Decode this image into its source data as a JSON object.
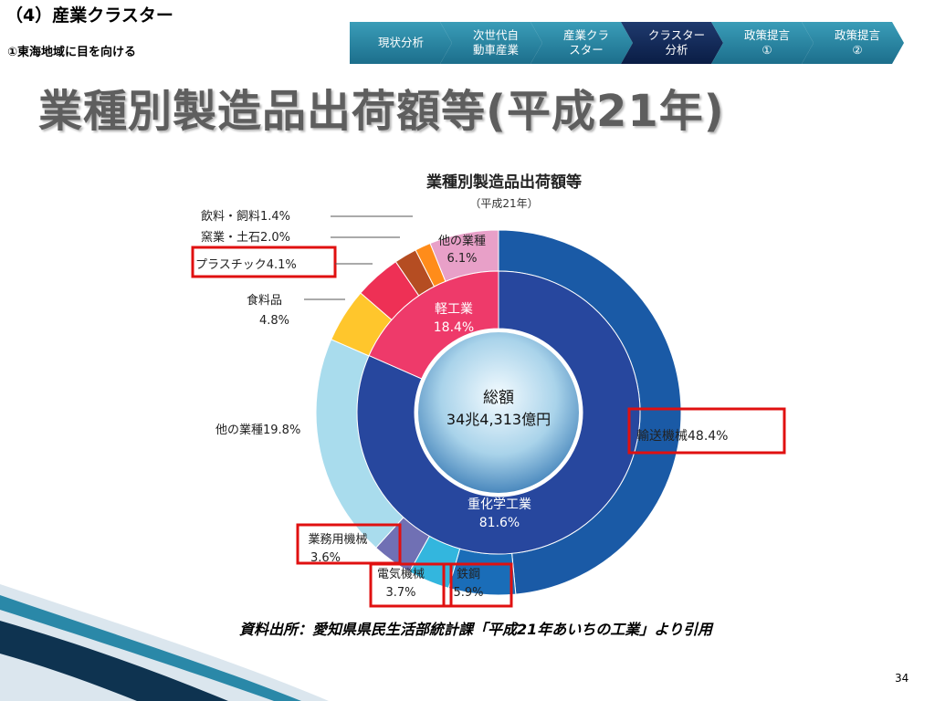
{
  "header": {
    "section_title": "（4）産業クラスター",
    "section_sub": "①東海地域に目を向ける"
  },
  "steps": [
    {
      "label": "現状分析",
      "active": false
    },
    {
      "label": "次世代自\n動車産業",
      "active": false
    },
    {
      "label": "産業クラ\nスター",
      "active": false
    },
    {
      "label": "クラスター\n分析",
      "active": true
    },
    {
      "label": "政策提言\n①",
      "active": false
    },
    {
      "label": "政策提言\n②",
      "active": false
    }
  ],
  "main_title": "業種別製造品出荷額等(平成21年)",
  "source": "資料出所：愛知県県民生活部統計課「平成21年あいちの工業」より引用",
  "page_number": "34",
  "colors": {
    "step": "#2a88a8",
    "step_active": "#0d2352",
    "highlight_box": "#e01010",
    "heavy_inner": "#27479e",
    "light_inner": "#ee3a6a"
  },
  "chart_data": {
    "type": "pie",
    "title": "業種別製造品出荷額等",
    "subtitle": "（平成21年）",
    "center_label": "総額",
    "center_value": "34兆4,313億円",
    "inner_ring": [
      {
        "name": "重化学工業",
        "value": 81.6,
        "label": "81.6%",
        "color": "#27479e"
      },
      {
        "name": "軽工業",
        "value": 18.4,
        "label": "18.4%",
        "color": "#ee3a6a"
      }
    ],
    "outer_ring": [
      {
        "name": "輸送機械",
        "value": 48.4,
        "label": "48.4%",
        "color": "#1a5aa6",
        "highlighted": true
      },
      {
        "name": "鉄鋼",
        "value": 5.9,
        "label": "5.9%",
        "color": "#1a6db8",
        "highlighted": true
      },
      {
        "name": "電気機械",
        "value": 3.7,
        "label": "3.7%",
        "color": "#33b6de",
        "highlighted": true
      },
      {
        "name": "業務用機械",
        "value": 3.6,
        "label": "3.6%",
        "color": "#7070b4",
        "highlighted": true
      },
      {
        "name": "他の業種",
        "value": 19.8,
        "label": "19.8%",
        "color": "#a9dced",
        "highlighted": false
      },
      {
        "name": "食料品",
        "value": 4.8,
        "label": "4.8%",
        "color": "#ffc62c",
        "highlighted": false
      },
      {
        "name": "プラスチック",
        "value": 4.1,
        "label": "4.1%",
        "color": "#ee3055",
        "highlighted": true
      },
      {
        "name": "窯業・土石",
        "value": 2.0,
        "label": "2.0%",
        "color": "#b54d22",
        "highlighted": false
      },
      {
        "name": "飲料・飼料",
        "value": 1.4,
        "label": "1.4%",
        "color": "#ff8c1a",
        "highlighted": false
      },
      {
        "name": "他の業種",
        "value": 6.1,
        "label": "6.1%",
        "color": "#e8a0c8",
        "highlighted": false
      }
    ]
  }
}
